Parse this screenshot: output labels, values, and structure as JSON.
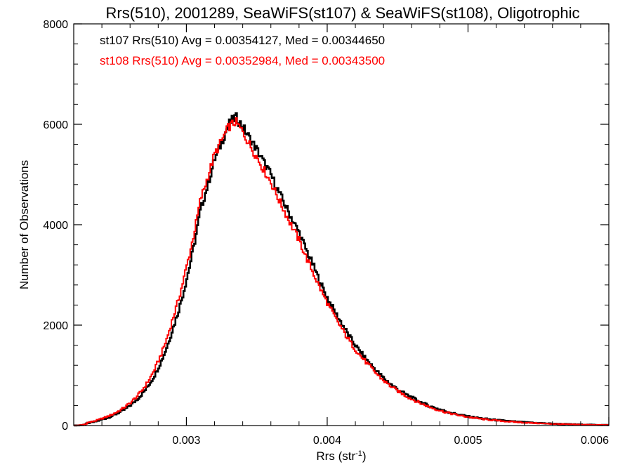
{
  "chart_data": {
    "type": "line",
    "title": "Rrs(510), 2001289, SeaWiFS(st107) & SeaWiFS(st108), Oligotrophic",
    "xlabel": "Rrs (str",
    "xlabel_sup": "-1",
    "xlabel_close": ")",
    "ylabel": "Number of Observations",
    "xlim": [
      0.0022,
      0.006
    ],
    "ylim": [
      0,
      8000
    ],
    "x_ticks": [
      0.003,
      0.004,
      0.005,
      0.006
    ],
    "x_tick_labels": [
      "0.003",
      "0.004",
      "0.005",
      "0.006"
    ],
    "y_ticks": [
      0,
      2000,
      4000,
      6000,
      8000
    ],
    "y_tick_labels": [
      "0",
      "2000",
      "4000",
      "6000",
      "8000"
    ],
    "grid": false,
    "legend_position": "top-left",
    "series": [
      {
        "name": "st107 Rrs(510) Avg = 0.00354127, Med = 0.00344650",
        "color": "#000000",
        "x": [
          0.0022,
          0.0023,
          0.0024,
          0.0025,
          0.0026,
          0.0027,
          0.0028,
          0.0029,
          0.003,
          0.0031,
          0.0032,
          0.0033,
          0.00335,
          0.0034,
          0.0035,
          0.0036,
          0.0037,
          0.0038,
          0.0039,
          0.004,
          0.0041,
          0.0042,
          0.0043,
          0.0044,
          0.0045,
          0.0046,
          0.0047,
          0.0048,
          0.005,
          0.0052,
          0.0055,
          0.006
        ],
        "y": [
          0,
          50,
          120,
          230,
          400,
          680,
          1150,
          1900,
          2900,
          4300,
          5300,
          6000,
          6150,
          5950,
          5500,
          5000,
          4400,
          3850,
          3200,
          2550,
          2050,
          1600,
          1250,
          950,
          720,
          560,
          420,
          320,
          180,
          110,
          50,
          10
        ]
      },
      {
        "name": "st108 Rrs(510) Avg = 0.00352984, Med = 0.00343500",
        "color": "#ff0000",
        "x": [
          0.0022,
          0.0023,
          0.0024,
          0.0025,
          0.0026,
          0.0027,
          0.0028,
          0.0029,
          0.003,
          0.0031,
          0.0032,
          0.0033,
          0.00335,
          0.0034,
          0.0035,
          0.0036,
          0.0037,
          0.0038,
          0.0039,
          0.004,
          0.0041,
          0.0042,
          0.0043,
          0.0044,
          0.0045,
          0.0046,
          0.0047,
          0.0048,
          0.005,
          0.0052,
          0.0055,
          0.006
        ],
        "y": [
          0,
          60,
          140,
          260,
          450,
          760,
          1280,
          2100,
          3150,
          4500,
          5400,
          5950,
          6050,
          5850,
          5350,
          4850,
          4250,
          3700,
          3050,
          2450,
          1950,
          1520,
          1190,
          900,
          690,
          530,
          400,
          300,
          170,
          100,
          45,
          10
        ]
      }
    ]
  }
}
